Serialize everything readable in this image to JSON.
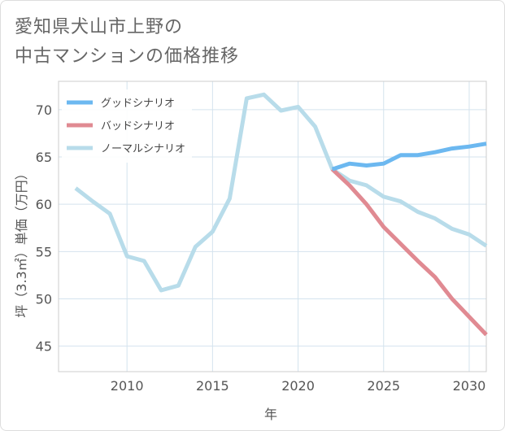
{
  "title_lines": [
    "愛知県犬山市上野の",
    "中古マンションの価格推移"
  ],
  "chart_data": {
    "type": "line",
    "xlabel": "年",
    "ylabel": "坪（3.3㎡）単価（万円）",
    "xlim": [
      2006,
      2031
    ],
    "ylim": [
      42.3,
      73
    ],
    "x_ticks": [
      2010,
      2015,
      2020,
      2025,
      2030
    ],
    "y_ticks": [
      45,
      50,
      55,
      60,
      65,
      70
    ],
    "grid": true,
    "legend_position": "top-left",
    "series": [
      {
        "name": "グッドシナリオ",
        "color": "#6cb8f0",
        "x": [
          2022,
          2023,
          2024,
          2025,
          2026,
          2027,
          2028,
          2029,
          2030,
          2031
        ],
        "y": [
          63.7,
          64.3,
          64.1,
          64.3,
          65.2,
          65.2,
          65.5,
          65.9,
          66.1,
          66.4
        ]
      },
      {
        "name": "バッドシナリオ",
        "color": "#e08a92",
        "x": [
          2022,
          2023,
          2024,
          2025,
          2026,
          2027,
          2028,
          2029,
          2030,
          2031
        ],
        "y": [
          63.7,
          62.0,
          60.0,
          57.6,
          55.8,
          54.0,
          52.3,
          50.0,
          48.1,
          46.2
        ]
      },
      {
        "name": "ノーマルシナリオ",
        "color": "#b8dcea",
        "x": [
          2007,
          2008,
          2009,
          2010,
          2011,
          2012,
          2013,
          2014,
          2015,
          2016,
          2017,
          2018,
          2019,
          2020,
          2021,
          2022,
          2023,
          2024,
          2025,
          2026,
          2027,
          2028,
          2029,
          2030,
          2031
        ],
        "y": [
          61.7,
          60.3,
          59.0,
          54.5,
          54.0,
          50.9,
          51.4,
          55.5,
          57.1,
          60.6,
          71.2,
          71.6,
          69.9,
          70.3,
          68.2,
          63.7,
          62.5,
          62.0,
          60.8,
          60.3,
          59.2,
          58.5,
          57.4,
          56.8,
          55.6
        ]
      }
    ]
  }
}
